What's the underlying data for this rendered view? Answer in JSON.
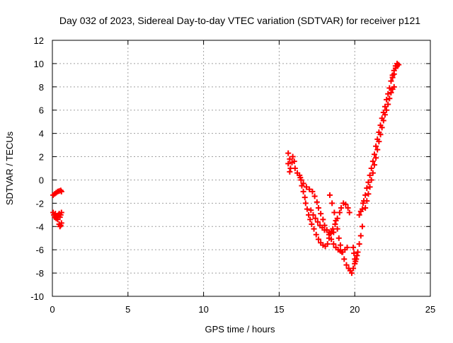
{
  "chart_data": {
    "type": "scatter",
    "title": "Day 032 of 2023, Sidereal Day-to-day VTEC variation (SDTVAR) for receiver p121",
    "xlabel": "GPS time / hours",
    "ylabel": "SDTVAR / TECUs",
    "xlim": [
      0,
      25
    ],
    "ylim": [
      -10,
      12
    ],
    "xticks": [
      0,
      5,
      10,
      15,
      20,
      25
    ],
    "yticks": [
      -10,
      -8,
      -6,
      -4,
      -2,
      0,
      2,
      4,
      6,
      8,
      10,
      12
    ],
    "grid": true,
    "legend": "none",
    "marker": "plus",
    "color": "#ff0000",
    "series": [
      {
        "points": [
          [
            0.05,
            -1.3
          ],
          [
            0.15,
            -1.2
          ],
          [
            0.25,
            -1.1
          ],
          [
            0.35,
            -1.0
          ],
          [
            0.45,
            -0.95
          ],
          [
            0.55,
            -0.9
          ],
          [
            0.6,
            -1.0
          ],
          [
            0.05,
            -2.8
          ],
          [
            0.1,
            -3.0
          ],
          [
            0.15,
            -3.2
          ],
          [
            0.2,
            -2.9
          ],
          [
            0.25,
            -3.3
          ],
          [
            0.3,
            -3.1
          ],
          [
            0.35,
            -3.4
          ],
          [
            0.4,
            -3.0
          ],
          [
            0.45,
            -2.9
          ],
          [
            0.5,
            -3.2
          ],
          [
            0.55,
            -3.0
          ],
          [
            0.6,
            -2.8
          ],
          [
            0.45,
            -3.8
          ],
          [
            0.5,
            -4.0
          ],
          [
            0.55,
            -3.9
          ],
          [
            0.6,
            -3.7
          ],
          [
            15.6,
            2.3
          ],
          [
            15.7,
            1.8
          ],
          [
            15.6,
            1.4
          ],
          [
            15.75,
            1.0
          ],
          [
            15.7,
            0.7
          ],
          [
            15.85,
            1.5
          ],
          [
            15.9,
            2.0
          ],
          [
            16.0,
            1.6
          ],
          [
            16.05,
            1.0
          ],
          [
            16.2,
            0.6
          ],
          [
            16.35,
            0.4
          ],
          [
            16.45,
            0.0
          ],
          [
            16.5,
            -0.5
          ],
          [
            16.6,
            -1.0
          ],
          [
            16.7,
            -1.5
          ],
          [
            16.75,
            -2.0
          ],
          [
            16.85,
            -2.5
          ],
          [
            16.95,
            -3.0
          ],
          [
            17.05,
            -3.4
          ],
          [
            17.15,
            -3.8
          ],
          [
            17.3,
            -4.2
          ],
          [
            17.45,
            -4.7
          ],
          [
            17.6,
            -5.1
          ],
          [
            17.75,
            -5.4
          ],
          [
            17.9,
            -5.6
          ],
          [
            18.05,
            -5.7
          ],
          [
            18.2,
            -5.5
          ],
          [
            18.3,
            -5.0
          ],
          [
            18.4,
            -4.6
          ],
          [
            18.55,
            -4.2
          ],
          [
            18.7,
            -3.8
          ],
          [
            18.85,
            -3.3
          ],
          [
            19.0,
            -2.8
          ],
          [
            19.1,
            -2.4
          ],
          [
            19.25,
            -2.0
          ],
          [
            19.4,
            -2.1
          ],
          [
            19.55,
            -2.4
          ],
          [
            19.65,
            -2.8
          ],
          [
            16.4,
            0.2
          ],
          [
            16.6,
            -0.3
          ],
          [
            16.8,
            -0.6
          ],
          [
            17.0,
            -0.8
          ],
          [
            17.2,
            -1.0
          ],
          [
            17.35,
            -1.4
          ],
          [
            17.5,
            -1.9
          ],
          [
            17.6,
            -2.4
          ],
          [
            17.75,
            -2.9
          ],
          [
            17.9,
            -3.4
          ],
          [
            18.0,
            -3.9
          ],
          [
            18.15,
            -4.3
          ],
          [
            18.3,
            -4.7
          ],
          [
            18.45,
            -5.1
          ],
          [
            18.6,
            -5.5
          ],
          [
            18.75,
            -5.8
          ],
          [
            18.9,
            -6.0
          ],
          [
            19.05,
            -6.1
          ],
          [
            19.2,
            -6.2
          ],
          [
            19.35,
            -6.0
          ],
          [
            19.5,
            -5.8
          ],
          [
            17.1,
            -2.6
          ],
          [
            17.25,
            -3.0
          ],
          [
            17.4,
            -3.3
          ],
          [
            17.55,
            -3.6
          ],
          [
            17.7,
            -3.9
          ],
          [
            17.85,
            -4.1
          ],
          [
            18.0,
            -4.3
          ],
          [
            18.15,
            -4.3
          ],
          [
            18.3,
            -4.5
          ],
          [
            18.45,
            -4.4
          ],
          [
            18.6,
            -4.5
          ],
          [
            18.35,
            -1.3
          ],
          [
            18.5,
            -2.0
          ],
          [
            18.65,
            -2.8
          ],
          [
            18.75,
            -3.5
          ],
          [
            18.85,
            -4.2
          ],
          [
            18.95,
            -5.0
          ],
          [
            19.05,
            -5.6
          ],
          [
            19.15,
            -6.2
          ],
          [
            19.3,
            -6.8
          ],
          [
            19.45,
            -7.3
          ],
          [
            19.6,
            -7.6
          ],
          [
            19.7,
            -7.8
          ],
          [
            19.8,
            -8.0
          ],
          [
            19.9,
            -7.6
          ],
          [
            20.0,
            -7.2
          ],
          [
            20.1,
            -6.8
          ],
          [
            20.2,
            -6.2
          ],
          [
            20.3,
            -5.5
          ],
          [
            20.4,
            -4.8
          ],
          [
            20.5,
            -4.0
          ],
          [
            19.9,
            -5.8
          ],
          [
            19.95,
            -6.3
          ],
          [
            20.0,
            -6.8
          ],
          [
            20.05,
            -7.0
          ],
          [
            20.15,
            -6.5
          ],
          [
            20.3,
            -3.0
          ],
          [
            20.4,
            -2.7
          ],
          [
            20.5,
            -2.5
          ],
          [
            20.55,
            -2.0
          ],
          [
            20.6,
            -1.8
          ],
          [
            20.7,
            -1.3
          ],
          [
            20.8,
            -0.7
          ],
          [
            20.9,
            -0.2
          ],
          [
            21.0,
            0.4
          ],
          [
            21.1,
            1.0
          ],
          [
            21.2,
            1.6
          ],
          [
            21.3,
            2.2
          ],
          [
            21.4,
            2.9
          ],
          [
            21.5,
            3.5
          ],
          [
            21.6,
            4.1
          ],
          [
            21.7,
            4.7
          ],
          [
            21.8,
            5.3
          ],
          [
            21.9,
            5.8
          ],
          [
            22.0,
            6.3
          ],
          [
            22.1,
            6.9
          ],
          [
            22.2,
            7.4
          ],
          [
            22.3,
            7.9
          ],
          [
            22.4,
            8.5
          ],
          [
            22.5,
            9.0
          ],
          [
            22.6,
            9.4
          ],
          [
            22.7,
            9.8
          ],
          [
            22.8,
            10.0
          ],
          [
            22.9,
            9.9
          ],
          [
            20.7,
            -2.4
          ],
          [
            20.8,
            -1.8
          ],
          [
            20.9,
            -1.2
          ],
          [
            21.0,
            -0.6
          ],
          [
            21.1,
            0.0
          ],
          [
            21.2,
            0.6
          ],
          [
            21.3,
            1.3
          ],
          [
            21.4,
            1.9
          ],
          [
            21.5,
            2.6
          ],
          [
            21.6,
            3.3
          ],
          [
            21.7,
            3.9
          ],
          [
            21.8,
            4.5
          ],
          [
            21.9,
            5.1
          ],
          [
            22.0,
            5.6
          ],
          [
            22.1,
            6.0
          ],
          [
            22.2,
            6.5
          ],
          [
            22.3,
            7.0
          ],
          [
            22.4,
            7.5
          ],
          [
            22.5,
            7.8
          ],
          [
            22.6,
            8.0
          ],
          [
            22.5,
            8.8
          ],
          [
            22.6,
            9.1
          ],
          [
            22.7,
            9.6
          ],
          [
            22.8,
            9.8
          ]
        ]
      }
    ]
  }
}
